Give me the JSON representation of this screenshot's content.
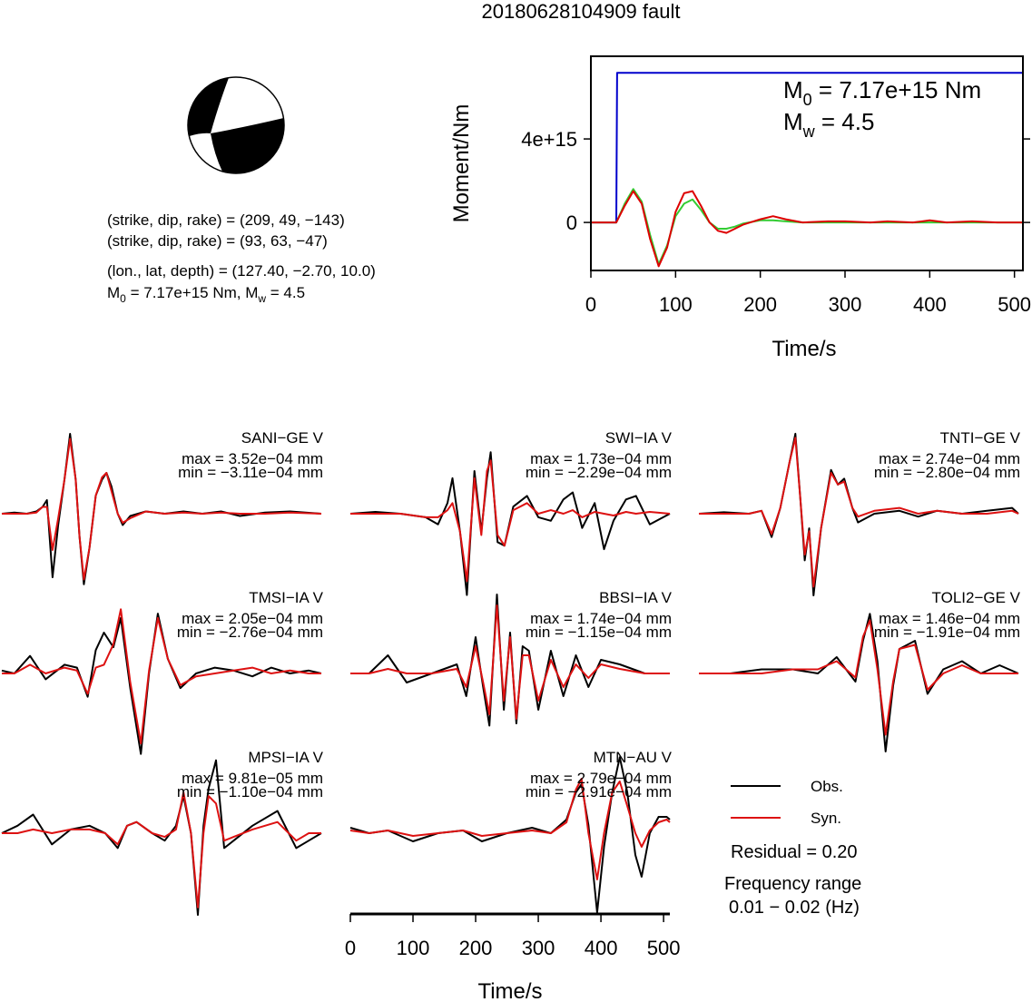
{
  "title": "20180628104909 fault",
  "info": [
    [
      {
        "text": "(strike, dip, rake) = (209, 49, −143)"
      }
    ],
    [
      {
        "text": "(strike, dip, rake) = (93, 63, −47)"
      }
    ],
    [
      {
        "text": "(lon., lat, depth) = (127.40, −2.70, 10.0)"
      }
    ],
    [
      {
        "text": "M"
      },
      {
        "text": "0",
        "sub": true
      },
      {
        "text": " = 7.17e+15 Nm, M"
      },
      {
        "text": "w",
        "sub": true
      },
      {
        "text": " = 4.5"
      }
    ]
  ],
  "notes": {
    "residual": "Residual = 0.20",
    "frequency_label": "Frequency range",
    "frequency": "0.01 − 0.02 (Hz)"
  },
  "chart_data": [
    {
      "type": "moment",
      "xlabel": "Time/s",
      "ylabel": "Moment/Nm",
      "xlim": [
        0,
        510
      ],
      "ylim": [
        -2300000000000000.0,
        7960000000000000.0
      ],
      "xticks": [
        0,
        100,
        200,
        300,
        400,
        500
      ],
      "yticks": [
        0,
        {
          "value": 4000000000000000.0,
          "label": "4e+15"
        }
      ],
      "annotations": [
        [
          {
            "text": "M"
          },
          {
            "text": "0",
            "sub": true
          },
          {
            "text": " = 7.17e+15 Nm"
          }
        ],
        [
          {
            "text": "M"
          },
          {
            "text": "w",
            "sub": true
          },
          {
            "text": " = 4.5"
          }
        ]
      ],
      "series": [
        {
          "color": "#0000cc",
          "x": [
            0,
            30,
            31,
            510
          ],
          "values": [
            0,
            0,
            7170000000000000.0,
            7170000000000000.0
          ]
        },
        {
          "color": "#33cc33",
          "x": [
            0,
            20,
            30,
            40,
            50,
            60,
            70,
            80,
            90,
            100,
            110,
            120,
            130,
            140,
            150,
            160,
            170,
            180,
            200,
            215,
            230,
            250,
            280,
            300,
            330,
            350,
            380,
            400,
            420,
            450,
            480,
            510
          ],
          "values": [
            0,
            0,
            0,
            900000000000000.0,
            1600000000000000.0,
            1000000000000000.0,
            -600000000000000.0,
            -2000000000000000.0,
            -1100000000000000.0,
            300000000000000.0,
            900000000000000.0,
            1100000000000000.0,
            600000000000000.0,
            0,
            -300000000000000.0,
            -300000000000000.0,
            -200000000000000.0,
            -50000000000000.0,
            100000000000000.0,
            100000000000000.0,
            50000000000000.0,
            0,
            0,
            0,
            0,
            0,
            0,
            0,
            0,
            0,
            0,
            0
          ]
        },
        {
          "color": "#dd0000",
          "x": [
            0,
            20,
            30,
            40,
            50,
            60,
            70,
            80,
            90,
            100,
            110,
            120,
            130,
            140,
            150,
            160,
            170,
            180,
            200,
            215,
            230,
            250,
            280,
            300,
            330,
            350,
            380,
            400,
            420,
            450,
            480,
            510
          ],
          "values": [
            0,
            0,
            0,
            800000000000000.0,
            1500000000000000.0,
            900000000000000.0,
            -800000000000000.0,
            -2100000000000000.0,
            -1200000000000000.0,
            500000000000000.0,
            1400000000000000.0,
            1500000000000000.0,
            800000000000000.0,
            0,
            -400000000000000.0,
            -500000000000000.0,
            -300000000000000.0,
            -100000000000000.0,
            150000000000000.0,
            300000000000000.0,
            150000000000000.0,
            0,
            50000000000000.0,
            50000000000000.0,
            0,
            50000000000000.0,
            0,
            100000000000000.0,
            0,
            50000000000000.0,
            0,
            0
          ]
        }
      ]
    },
    {
      "type": "waveform",
      "title": "SANI−GE V",
      "annotations": [
        "max = 3.52e−04 mm",
        "min = −3.11e−04 mm"
      ],
      "xlim": [
        0,
        510
      ],
      "ylim": [
        -0.00036,
        0.00036
      ],
      "x": [
        0,
        20,
        40,
        55,
        65,
        72,
        81,
        90,
        100,
        109,
        118,
        124,
        131,
        140,
        150,
        160,
        167,
        175,
        185,
        193,
        205,
        230,
        260,
        290,
        320,
        350,
        380,
        420,
        460,
        510
      ],
      "series": [
        {
          "name": "Obs.",
          "color": "#000000",
          "values": [
            0,
            5e-06,
            0,
            1e-05,
            3e-05,
            6e-05,
            -0.00028,
            -5e-05,
            0.00015,
            0.000352,
            0.00015,
            -0.0001,
            -0.000311,
            -0.00015,
            8e-05,
            0.00015,
            0.00018,
            0.00012,
            0,
            -5e-05,
            -1e-05,
            1e-05,
            0,
            1e-05,
            0,
            1e-05,
            -1e-05,
            5e-06,
            1e-05,
            0
          ]
        },
        {
          "name": "Syn.",
          "color": "#dd1111",
          "values": [
            0,
            0,
            0,
            5e-06,
            3e-05,
            3e-05,
            -0.00016,
            -2e-05,
            0.00015,
            0.00033,
            0.00015,
            -0.0001,
            -0.00029,
            -0.00015,
            8e-05,
            0.00016,
            0.00018,
            0.0001,
            0,
            -4e-05,
            -2e-05,
            1e-05,
            0,
            5e-06,
            0,
            5e-06,
            0,
            0,
            5e-06,
            0
          ]
        }
      ]
    },
    {
      "type": "waveform",
      "title": "SWI−IA V",
      "annotations": [
        "max = 1.73e−04 mm",
        "min = −2.29e−04 mm"
      ],
      "xlim": [
        0,
        510
      ],
      "ylim": [
        -0.00023,
        0.00023
      ],
      "x": [
        0,
        40,
        80,
        120,
        140,
        155,
        163,
        175,
        186,
        198,
        209,
        218,
        224,
        235,
        246,
        260,
        282,
        300,
        320,
        340,
        355,
        370,
        390,
        405,
        420,
        440,
        456,
        478,
        510
      ],
      "series": [
        {
          "name": "Obs.",
          "color": "#000000",
          "values": [
            0,
            5e-06,
            0,
            -1e-05,
            -3e-05,
            3e-05,
            0.0001,
            -5e-05,
            -0.000229,
            0.00012,
            -5e-05,
            0.0001,
            0.000173,
            -8e-05,
            -9e-05,
            2e-05,
            5e-05,
            -1e-05,
            -2e-05,
            4e-05,
            6e-05,
            -4e-05,
            3e-05,
            -0.0001,
            -2e-05,
            4e-05,
            5e-05,
            -3e-05,
            0
          ]
        },
        {
          "name": "Syn.",
          "color": "#dd1111",
          "values": [
            0,
            0,
            0,
            -1e-05,
            -1e-05,
            1e-05,
            3e-05,
            -5e-05,
            -0.00019,
            0.0001,
            -6e-05,
            0.00012,
            0.00015,
            -6e-05,
            -9e-05,
            1e-05,
            3e-05,
            0,
            1e-05,
            0,
            1e-05,
            -1e-05,
            5e-06,
            0,
            -5e-06,
            5e-06,
            0,
            5e-06,
            0
          ]
        }
      ]
    },
    {
      "type": "waveform",
      "title": "TNTI−GE V",
      "annotations": [
        "max = 2.74e−04 mm",
        "min = −2.80e−04 mm"
      ],
      "xlim": [
        0,
        510
      ],
      "ylim": [
        -0.00028,
        0.00028
      ],
      "x": [
        0,
        40,
        80,
        100,
        116,
        130,
        145,
        154,
        162,
        169,
        176,
        183,
        195,
        211,
        222,
        232,
        245,
        254,
        280,
        320,
        350,
        380,
        420,
        460,
        500,
        510
      ],
      "series": [
        {
          "name": "Obs.",
          "color": "#000000",
          "values": [
            0,
            5e-06,
            0,
            1e-05,
            -8e-05,
            2e-05,
            0.00018,
            0.000274,
            5e-05,
            -0.00016,
            -5e-05,
            -0.00028,
            -5e-05,
            0.00015,
            0.0001,
            0.00012,
            2e-05,
            -3e-05,
            0,
            1e-05,
            -1e-05,
            1e-05,
            0,
            1e-05,
            2e-05,
            0
          ]
        },
        {
          "name": "Syn.",
          "color": "#dd1111",
          "values": [
            0,
            0,
            0,
            1e-05,
            -7e-05,
            2e-05,
            0.00018,
            0.00026,
            5e-05,
            -0.00014,
            -6e-05,
            -0.00025,
            -5e-05,
            0.00014,
            0.0001,
            0.00011,
            2e-05,
            -1e-05,
            1e-05,
            2e-05,
            0,
            1e-05,
            0,
            0,
            1e-05,
            0
          ]
        }
      ]
    },
    {
      "type": "waveform",
      "title": "TMSI−IA V",
      "annotations": [
        "max = 2.05e−04 mm",
        "min = −2.76e−04 mm"
      ],
      "xlim": [
        0,
        510
      ],
      "ylim": [
        -0.00028,
        0.00028
      ],
      "x": [
        0,
        20,
        45,
        70,
        100,
        120,
        137,
        150,
        163,
        178,
        190,
        205,
        222,
        235,
        249,
        265,
        285,
        310,
        340,
        370,
        400,
        430,
        460,
        490,
        510
      ],
      "series": [
        {
          "name": "Obs.",
          "color": "#000000",
          "values": [
            1e-05,
            0,
            6e-05,
            -2e-05,
            3e-05,
            2e-05,
            -8e-05,
            8e-05,
            0.00014,
            9e-05,
            0.00019,
            -5e-05,
            -0.000276,
            0,
            0.000205,
            5e-05,
            -5e-05,
            0,
            2e-05,
            1e-05,
            -1e-05,
            2e-05,
            0,
            1e-05,
            0
          ]
        },
        {
          "name": "Syn.",
          "color": "#dd1111",
          "values": [
            0,
            0,
            3e-05,
            0,
            2e-05,
            1e-05,
            -7e-05,
            2e-05,
            3e-05,
            0.0001,
            0.00022,
            -3e-05,
            -0.00024,
            1e-05,
            0.00019,
            5e-05,
            -4e-05,
            -1e-05,
            0,
            1e-05,
            2e-05,
            0,
            1e-05,
            0,
            0
          ]
        }
      ]
    },
    {
      "type": "waveform",
      "title": "BBSI−IA V",
      "annotations": [
        "max = 1.74e−04 mm",
        "min = −1.15e−04 mm"
      ],
      "xlim": [
        0,
        510
      ],
      "ylim": [
        -0.00018,
        0.00018
      ],
      "x": [
        0,
        30,
        60,
        90,
        130,
        170,
        185,
        200,
        212,
        222,
        234,
        245,
        255,
        265,
        275,
        285,
        300,
        320,
        340,
        360,
        380,
        400,
        430,
        470,
        510
      ],
      "series": [
        {
          "name": "Obs.",
          "color": "#000000",
          "values": [
            0,
            0,
            4e-05,
            -2e-05,
            0,
            2e-05,
            -5e-05,
            8e-05,
            -3e-05,
            -0.000115,
            0.000174,
            -8e-05,
            9e-05,
            -0.00011,
            6e-05,
            5e-05,
            -8e-05,
            5e-05,
            -5e-05,
            4e-05,
            -3e-05,
            3e-05,
            2e-05,
            0,
            0
          ]
        },
        {
          "name": "Syn.",
          "color": "#dd1111",
          "values": [
            0,
            0,
            1e-05,
            0,
            0,
            1e-05,
            -3e-05,
            6e-05,
            -2e-05,
            -9e-05,
            0.00015,
            -6e-05,
            8e-05,
            -0.0001,
            4e-05,
            4e-05,
            -6e-05,
            3e-05,
            -3e-05,
            2e-05,
            -1e-05,
            2e-05,
            1e-05,
            0,
            0
          ]
        }
      ]
    },
    {
      "type": "waveform",
      "title": "TOLI2−GE V",
      "annotations": [
        "max = 1.46e−04 mm",
        "min = −1.91e−04 mm"
      ],
      "xlim": [
        0,
        510
      ],
      "ylim": [
        -0.0002,
        0.0002
      ],
      "x": [
        0,
        50,
        100,
        150,
        190,
        220,
        250,
        262,
        273,
        285,
        298,
        310,
        320,
        345,
        365,
        390,
        420,
        450,
        480,
        510
      ],
      "series": [
        {
          "name": "Obs.",
          "color": "#000000",
          "values": [
            0,
            0,
            1e-05,
            1e-05,
            0,
            4e-05,
            -2e-05,
            8e-05,
            0.000146,
            3e-05,
            -0.000191,
            -3e-05,
            6e-05,
            8e-05,
            -5e-05,
            1e-05,
            3e-05,
            0,
            2e-05,
            0
          ]
        },
        {
          "name": "Syn.",
          "color": "#dd1111",
          "values": [
            0,
            0,
            0,
            1e-05,
            1e-05,
            3e-05,
            -1e-05,
            9e-05,
            0.00013,
            1e-05,
            -0.00015,
            -2e-05,
            6e-05,
            7e-05,
            -4e-05,
            0,
            2e-05,
            0,
            0,
            0
          ]
        }
      ]
    },
    {
      "type": "waveform",
      "title": "MPSI−IA V",
      "annotations": [
        "max = 9.81e−05 mm",
        "min = −1.10e−04 mm"
      ],
      "xlim": [
        0,
        510
      ],
      "ylim": [
        -0.00011,
        0.00011
      ],
      "x": [
        0,
        25,
        50,
        80,
        110,
        140,
        165,
        185,
        200,
        215,
        240,
        260,
        278,
        290,
        302,
        313,
        322,
        330,
        342,
        355,
        370,
        400,
        440,
        470,
        490,
        510
      ],
      "series": [
        {
          "name": "Obs.",
          "color": "#000000",
          "values": [
            0,
            1e-05,
            2.5e-05,
            -1.5e-05,
            5e-06,
            1e-05,
            0,
            -2e-05,
            1e-05,
            1.5e-05,
            0,
            -1e-05,
            1e-05,
            5e-05,
            0,
            -0.00011,
            1e-05,
            6e-05,
            9.81e-05,
            -2e-05,
            -1e-05,
            1e-05,
            3e-05,
            -2e-05,
            -1e-05,
            0
          ]
        },
        {
          "name": "Syn.",
          "color": "#dd1111",
          "values": [
            0,
            0,
            5e-06,
            0,
            5e-06,
            5e-06,
            0,
            -1.5e-05,
            1e-05,
            1.5e-05,
            0,
            -5e-06,
            5e-06,
            5.5e-05,
            0,
            -0.0001,
            0,
            5e-05,
            4e-05,
            -1e-05,
            -5e-06,
            5e-06,
            1.5e-05,
            -1e-05,
            0,
            0
          ]
        }
      ]
    },
    {
      "type": "waveform",
      "title": "MTN−AU V",
      "annotations": [
        "max = 2.79e−04 mm",
        "min = −2.91e−04 mm"
      ],
      "xlim": [
        0,
        510
      ],
      "ylim": [
        -0.0003,
        0.0003
      ],
      "xticks": [
        0,
        100,
        200,
        300,
        400,
        500
      ],
      "xlabel": "Time/s",
      "x": [
        0,
        30,
        60,
        100,
        140,
        180,
        210,
        250,
        290,
        320,
        345,
        360,
        369,
        380,
        394,
        405,
        418,
        430,
        442,
        455,
        465,
        478,
        492,
        505,
        510
      ],
      "series": [
        {
          "name": "Obs.",
          "color": "#000000",
          "values": [
            2e-05,
            0,
            1e-05,
            -3e-05,
            0,
            1e-05,
            -3e-05,
            0,
            2e-05,
            0,
            5e-05,
            0.00015,
            0.00018,
            3e-05,
            -0.000291,
            -5e-05,
            0.00015,
            0.000279,
            0.00015,
            -8e-05,
            -0.00016,
            0,
            6e-05,
            6e-05,
            5e-05
          ]
        },
        {
          "name": "Syn.",
          "color": "#dd1111",
          "values": [
            1e-05,
            0,
            1e-05,
            -1e-05,
            0,
            1e-05,
            -1e-05,
            0,
            1e-05,
            0,
            4e-05,
            0.00016,
            0.0002,
            0,
            -0.00017,
            0,
            0.00015,
            0.00019,
            0.0001,
            0,
            -5e-05,
            1e-05,
            4e-05,
            5e-05,
            4e-05
          ]
        }
      ]
    }
  ]
}
